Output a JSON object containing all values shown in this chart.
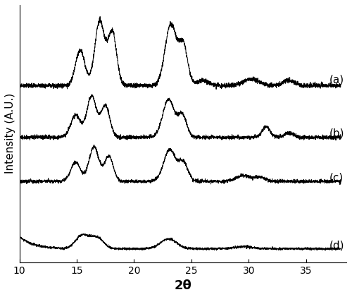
{
  "title": "",
  "xlabel": "2θ",
  "ylabel": "Intensity (A.U.)",
  "xlim": [
    10,
    38
  ],
  "labels": [
    "(a)",
    "(b)",
    "(c)",
    "(d)"
  ],
  "line_color": "#000000",
  "line_width": 0.7,
  "background_color": "#ffffff",
  "xticks": [
    10,
    15,
    20,
    25,
    30,
    35
  ],
  "xlabel_fontsize": 13,
  "ylabel_fontsize": 11,
  "tick_fontsize": 10,
  "label_fontsize": 11,
  "offsets": [
    2.2,
    1.5,
    0.9,
    0.0
  ],
  "noise_level": 0.022,
  "peak_scale": 1.0
}
